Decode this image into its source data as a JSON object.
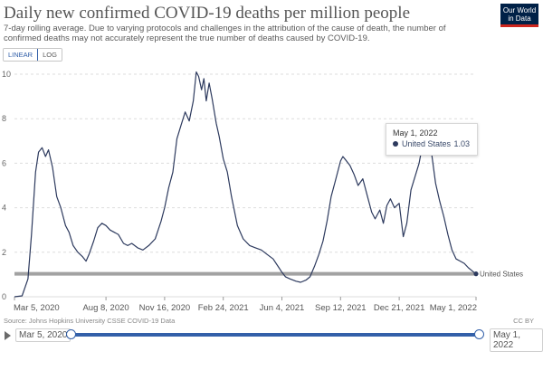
{
  "title": "Daily new confirmed COVID-19 deaths per million people",
  "subtitle": "7-day rolling average. Due to varying protocols and challenges in the attribution of the cause of death, the number of confirmed deaths may not accurately represent the true number of deaths caused by COVID-19.",
  "logo": {
    "line1": "Our World",
    "line2": "in Data"
  },
  "scale_toggle": {
    "linear": "LINEAR",
    "log": "LOG",
    "active": "linear"
  },
  "tooltip": {
    "date": "May 1, 2022",
    "series": "United States",
    "value": "1.03"
  },
  "source": "Source: Johns Hopkins University CSSE COVID-19 Data",
  "license": "CC BY",
  "timeline": {
    "start_label": "Mar 5, 2020",
    "end_label": "May 1, 2022"
  },
  "colors": {
    "series": "#2d3a5e",
    "grid": "#dddddd",
    "hover_line": "#999999",
    "accent": "#3360a9"
  },
  "chart_data": {
    "type": "line",
    "x_unit": "date",
    "x_start": "2020-03-05",
    "x_end": "2022-05-01",
    "ylim": [
      0,
      10
    ],
    "y_ticks": [
      "0",
      "2",
      "4",
      "6",
      "8",
      "10"
    ],
    "x_ticks": [
      {
        "date": "2020-03-05",
        "label": "Mar 5, 2020"
      },
      {
        "date": "2020-08-08",
        "label": "Aug 8, 2020"
      },
      {
        "date": "2020-11-16",
        "label": "Nov 16, 2020"
      },
      {
        "date": "2021-02-24",
        "label": "Feb 24, 2021"
      },
      {
        "date": "2021-06-04",
        "label": "Jun 4, 2021"
      },
      {
        "date": "2021-09-12",
        "label": "Sep 12, 2021"
      },
      {
        "date": "2021-12-21",
        "label": "Dec 21, 2021"
      },
      {
        "date": "2022-05-01",
        "label": "May 1, 2022"
      }
    ],
    "grid": true,
    "highlight_value": 1.03,
    "series": [
      {
        "name": "United States",
        "points": [
          [
            "2020-03-05",
            0
          ],
          [
            "2020-03-18",
            0.04
          ],
          [
            "2020-03-28",
            0.8
          ],
          [
            "2020-04-03",
            2.8
          ],
          [
            "2020-04-10",
            5.6
          ],
          [
            "2020-04-15",
            6.5
          ],
          [
            "2020-04-21",
            6.7
          ],
          [
            "2020-04-27",
            6.3
          ],
          [
            "2020-05-02",
            6.6
          ],
          [
            "2020-05-09",
            5.8
          ],
          [
            "2020-05-16",
            4.5
          ],
          [
            "2020-05-23",
            4.0
          ],
          [
            "2020-05-31",
            3.2
          ],
          [
            "2020-06-06",
            2.9
          ],
          [
            "2020-06-13",
            2.3
          ],
          [
            "2020-06-21",
            2.0
          ],
          [
            "2020-06-29",
            1.8
          ],
          [
            "2020-07-05",
            1.6
          ],
          [
            "2020-07-10",
            1.9
          ],
          [
            "2020-07-18",
            2.5
          ],
          [
            "2020-07-25",
            3.1
          ],
          [
            "2020-08-01",
            3.3
          ],
          [
            "2020-08-08",
            3.2
          ],
          [
            "2020-08-15",
            3.0
          ],
          [
            "2020-08-22",
            2.9
          ],
          [
            "2020-08-29",
            2.8
          ],
          [
            "2020-09-07",
            2.4
          ],
          [
            "2020-09-14",
            2.3
          ],
          [
            "2020-09-21",
            2.4
          ],
          [
            "2020-10-01",
            2.2
          ],
          [
            "2020-10-10",
            2.1
          ],
          [
            "2020-10-20",
            2.3
          ],
          [
            "2020-10-31",
            2.6
          ],
          [
            "2020-11-10",
            3.4
          ],
          [
            "2020-11-16",
            4.0
          ],
          [
            "2020-11-23",
            4.9
          ],
          [
            "2020-11-30",
            5.6
          ],
          [
            "2020-12-07",
            7.1
          ],
          [
            "2020-12-14",
            7.7
          ],
          [
            "2020-12-21",
            8.3
          ],
          [
            "2020-12-28",
            7.9
          ],
          [
            "2021-01-04",
            8.8
          ],
          [
            "2021-01-09",
            10.1
          ],
          [
            "2021-01-13",
            9.9
          ],
          [
            "2021-01-18",
            9.3
          ],
          [
            "2021-01-22",
            9.8
          ],
          [
            "2021-01-26",
            8.8
          ],
          [
            "2021-01-31",
            9.6
          ],
          [
            "2021-02-05",
            8.9
          ],
          [
            "2021-02-12",
            7.8
          ],
          [
            "2021-02-17",
            7.2
          ],
          [
            "2021-02-24",
            6.2
          ],
          [
            "2021-03-03",
            5.6
          ],
          [
            "2021-03-10",
            4.5
          ],
          [
            "2021-03-20",
            3.2
          ],
          [
            "2021-03-30",
            2.6
          ],
          [
            "2021-04-10",
            2.3
          ],
          [
            "2021-04-20",
            2.2
          ],
          [
            "2021-04-30",
            2.1
          ],
          [
            "2021-05-10",
            1.9
          ],
          [
            "2021-05-20",
            1.7
          ],
          [
            "2021-05-30",
            1.3
          ],
          [
            "2021-06-04",
            1.1
          ],
          [
            "2021-06-10",
            0.9
          ],
          [
            "2021-06-18",
            0.8
          ],
          [
            "2021-06-28",
            0.7
          ],
          [
            "2021-07-06",
            0.65
          ],
          [
            "2021-07-15",
            0.75
          ],
          [
            "2021-07-22",
            0.9
          ],
          [
            "2021-07-30",
            1.4
          ],
          [
            "2021-08-06",
            1.9
          ],
          [
            "2021-08-13",
            2.5
          ],
          [
            "2021-08-20",
            3.4
          ],
          [
            "2021-08-27",
            4.5
          ],
          [
            "2021-09-03",
            5.2
          ],
          [
            "2021-09-12",
            6.1
          ],
          [
            "2021-09-16",
            6.3
          ],
          [
            "2021-09-22",
            6.1
          ],
          [
            "2021-09-28",
            5.9
          ],
          [
            "2021-10-05",
            5.5
          ],
          [
            "2021-10-12",
            5.0
          ],
          [
            "2021-10-20",
            5.3
          ],
          [
            "2021-10-28",
            4.5
          ],
          [
            "2021-11-04",
            3.8
          ],
          [
            "2021-11-10",
            3.5
          ],
          [
            "2021-11-18",
            3.9
          ],
          [
            "2021-11-24",
            3.3
          ],
          [
            "2021-11-30",
            4.1
          ],
          [
            "2021-12-06",
            4.4
          ],
          [
            "2021-12-13",
            4.0
          ],
          [
            "2021-12-21",
            4.2
          ],
          [
            "2021-12-28",
            2.7
          ],
          [
            "2022-01-03",
            3.3
          ],
          [
            "2022-01-10",
            4.8
          ],
          [
            "2022-01-17",
            5.4
          ],
          [
            "2022-01-24",
            6.0
          ],
          [
            "2022-01-31",
            7.0
          ],
          [
            "2022-02-07",
            7.3
          ],
          [
            "2022-02-14",
            6.5
          ],
          [
            "2022-02-21",
            5.1
          ],
          [
            "2022-02-28",
            4.3
          ],
          [
            "2022-03-07",
            3.6
          ],
          [
            "2022-03-14",
            2.8
          ],
          [
            "2022-03-21",
            2.1
          ],
          [
            "2022-03-28",
            1.7
          ],
          [
            "2022-04-04",
            1.6
          ],
          [
            "2022-04-11",
            1.5
          ],
          [
            "2022-04-18",
            1.3
          ],
          [
            "2022-04-25",
            1.15
          ],
          [
            "2022-05-01",
            1.03
          ]
        ]
      }
    ]
  }
}
